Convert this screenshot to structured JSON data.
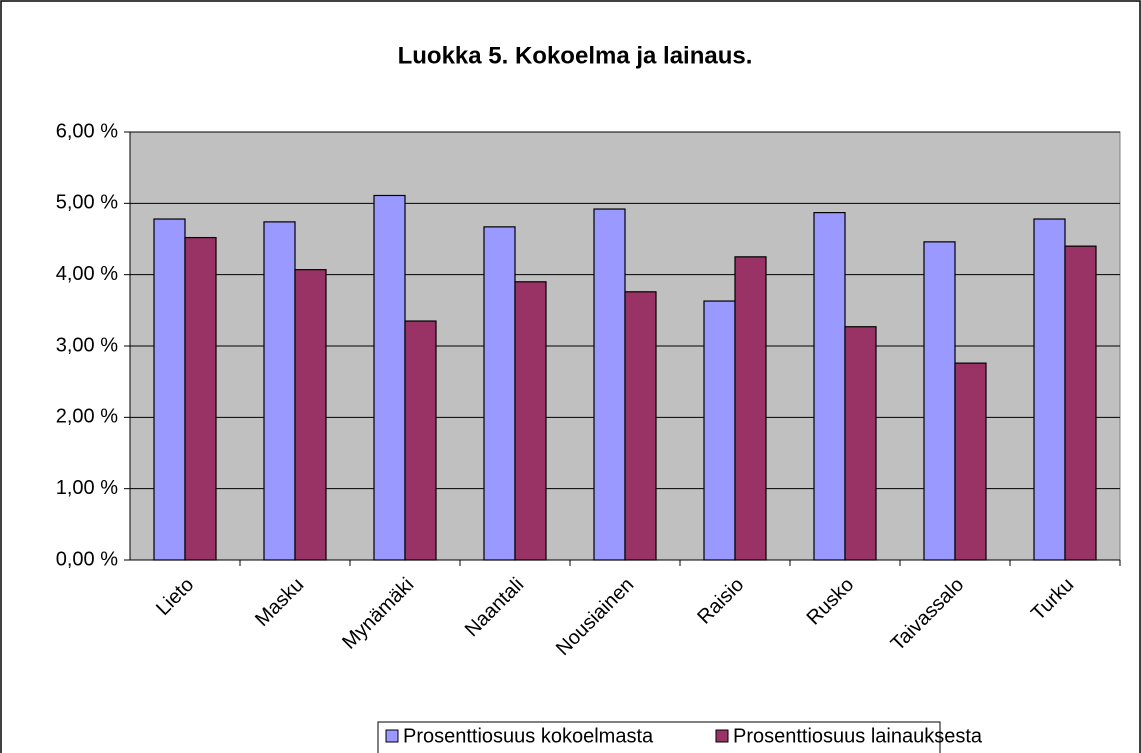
{
  "chart_data": {
    "type": "bar",
    "title": "Luokka 5. Kokoelma ja lainaus.",
    "categories": [
      "Lieto",
      "Masku",
      "Mynämäki",
      "Naantali",
      "Nousiainen",
      "Raisio",
      "Rusko",
      "Taivassalo",
      "Turku"
    ],
    "series": [
      {
        "name": "Prosenttiosuus kokoelmasta",
        "color": "#9999ff",
        "values": [
          4.78,
          4.74,
          5.11,
          4.67,
          4.92,
          3.63,
          4.87,
          4.46,
          4.78
        ]
      },
      {
        "name": "Prosenttiosuus lainauksesta",
        "color": "#993366",
        "values": [
          4.52,
          4.07,
          3.35,
          3.9,
          3.76,
          4.25,
          3.27,
          2.76,
          4.4
        ]
      }
    ],
    "ylim": [
      0,
      6
    ],
    "yticks": [
      {
        "value": 0,
        "label": "0,00 %"
      },
      {
        "value": 1,
        "label": "1,00 %"
      },
      {
        "value": 2,
        "label": "2,00 %"
      },
      {
        "value": 3,
        "label": "3,00 %"
      },
      {
        "value": 4,
        "label": "4,00 %"
      },
      {
        "value": 5,
        "label": "5,00 %"
      },
      {
        "value": 6,
        "label": "6,00 %"
      }
    ],
    "grid": true,
    "legend": "bottom"
  }
}
